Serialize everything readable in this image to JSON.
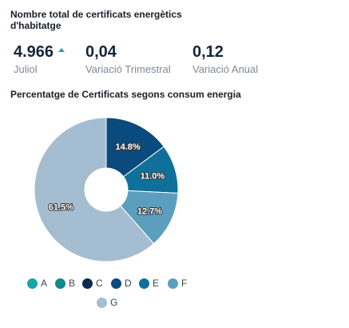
{
  "header": {
    "title": "Nombre total de certificats energètics d'habitatge"
  },
  "kpis": [
    {
      "value": "4.966",
      "label": "Juliol",
      "trend": "up"
    },
    {
      "value": "0,04",
      "label": "Variació Trimestral"
    },
    {
      "value": "0,12",
      "label": "Variació Anual"
    }
  ],
  "chart_data": {
    "type": "pie",
    "title": "Percentatge de Certificats segons consum energia",
    "categories": [
      "A",
      "B",
      "C",
      "D",
      "E",
      "F",
      "G"
    ],
    "values": [
      0,
      0,
      0,
      14.8,
      11.0,
      12.7,
      61.5
    ],
    "data_labels": [
      "",
      "",
      "",
      "14.8%",
      "11.0%",
      "12.7%",
      "61.5%"
    ],
    "colors": [
      "#1aa3a8",
      "#13878f",
      "#0b2a4e",
      "#0a4a7c",
      "#0f719b",
      "#5b9ebe",
      "#a5bdd0"
    ],
    "legend_position": "bottom"
  }
}
